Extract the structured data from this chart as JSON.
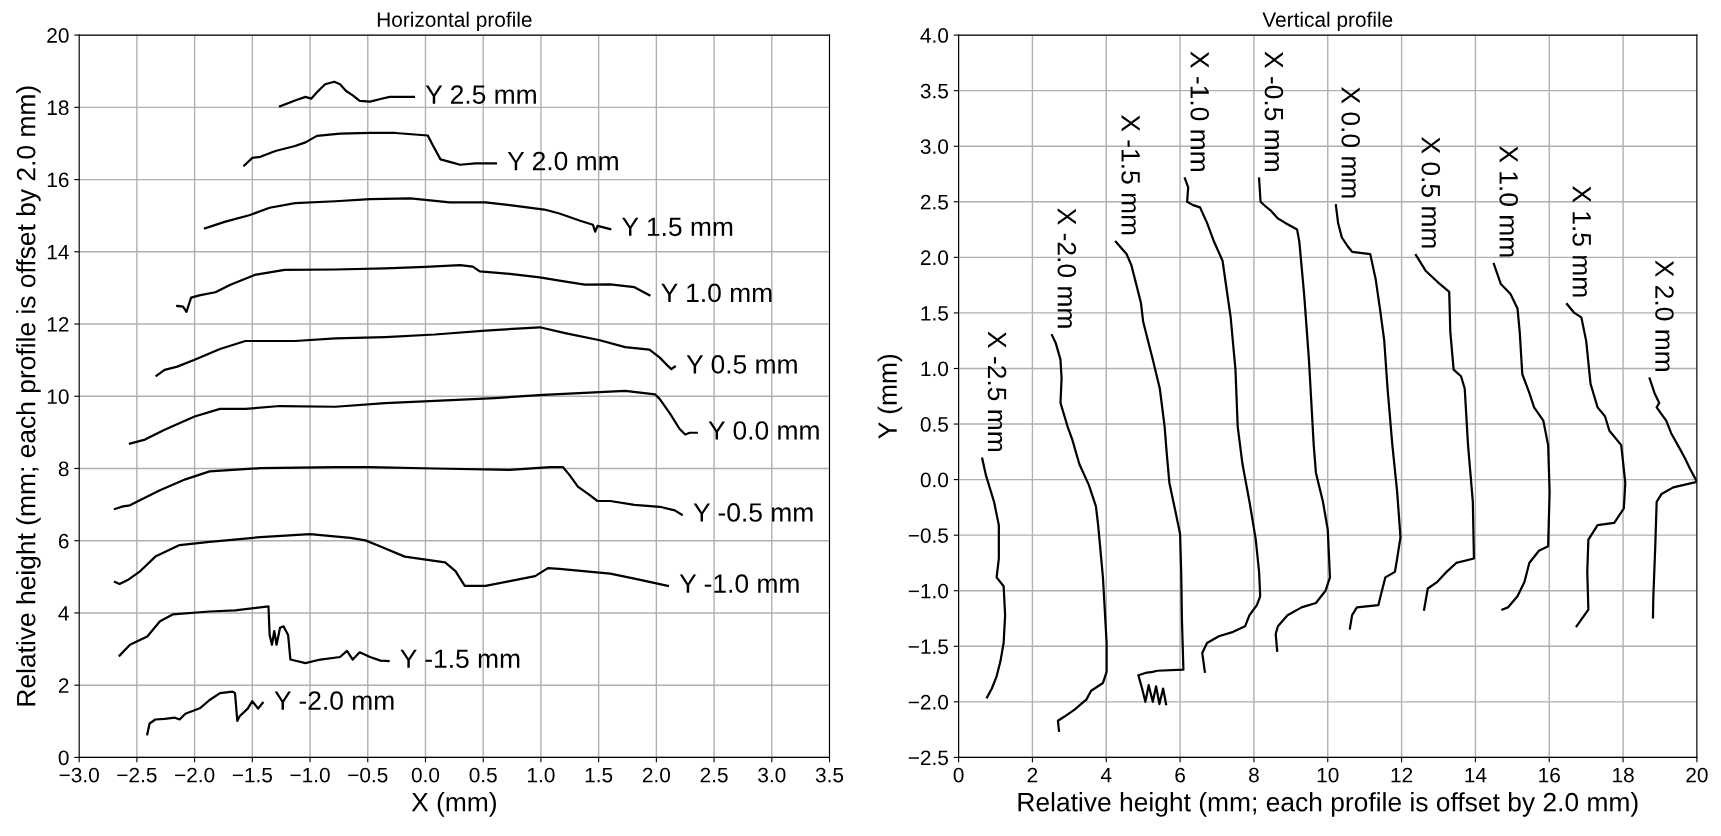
{
  "chart_data": [
    {
      "type": "line",
      "title": "Horizontal profile",
      "xlabel": "X (mm)",
      "ylabel": "Relative height (mm; each profile is offset by 2.0 mm)",
      "xlim": [
        -3.0,
        3.5
      ],
      "xticks": [
        {
          "value": -3.0,
          "label": "−3.0"
        },
        {
          "value": -2.5,
          "label": "−2.5"
        },
        {
          "value": -2.0,
          "label": "−2.0"
        },
        {
          "value": -1.5,
          "label": "−1.5"
        },
        {
          "value": -1.0,
          "label": "−1.0"
        },
        {
          "value": -0.5,
          "label": "−0.5"
        },
        {
          "value": 0.0,
          "label": "0.0"
        },
        {
          "value": 0.5,
          "label": "0.5"
        },
        {
          "value": 1.0,
          "label": "1.0"
        },
        {
          "value": 1.5,
          "label": "1.5"
        },
        {
          "value": 2.0,
          "label": "2.0"
        },
        {
          "value": 2.5,
          "label": "2.5"
        },
        {
          "value": 3.0,
          "label": "3.0"
        },
        {
          "value": 3.5,
          "label": "3.5"
        }
      ],
      "ylim": [
        0,
        20
      ],
      "yticks": [
        0,
        2,
        4,
        6,
        8,
        10,
        12,
        14,
        16,
        18,
        20
      ],
      "grid": true,
      "series": [
        {
          "name": "Y 2.5 mm",
          "color": "#000000",
          "x": [
            -1.26,
            -1.13,
            -1.04,
            -0.99,
            -0.94,
            -0.87,
            -0.79,
            -0.74,
            -0.69,
            -0.63,
            -0.57,
            -0.48,
            -0.39,
            -0.31,
            -0.18,
            -0.1
          ],
          "values": [
            18.03,
            18.19,
            18.29,
            18.24,
            18.42,
            18.64,
            18.71,
            18.64,
            18.46,
            18.33,
            18.18,
            18.16,
            18.23,
            18.29,
            18.29,
            18.29
          ]
        },
        {
          "name": "Y 2.0 mm",
          "color": "#000000",
          "x": [
            -1.57,
            -1.5,
            -1.43,
            -1.3,
            -1.13,
            -1.04,
            -0.94,
            -0.74,
            -0.48,
            -0.26,
            0.02,
            0.06,
            0.13,
            0.21,
            0.3,
            0.43,
            0.61
          ],
          "values": [
            16.39,
            16.6,
            16.63,
            16.79,
            16.93,
            17.03,
            17.21,
            17.27,
            17.29,
            17.29,
            17.22,
            16.97,
            16.56,
            16.49,
            16.41,
            16.45,
            16.45
          ]
        },
        {
          "name": "Y 1.5 mm",
          "color": "#000000",
          "x": [
            -1.91,
            -1.74,
            -1.52,
            -1.35,
            -1.13,
            -0.78,
            -0.48,
            -0.13,
            0.21,
            0.52,
            0.73,
            1.03,
            1.16,
            1.34,
            1.45,
            1.47,
            1.49,
            1.6
          ],
          "values": [
            14.65,
            14.83,
            15.02,
            15.22,
            15.35,
            15.4,
            15.46,
            15.48,
            15.37,
            15.37,
            15.29,
            15.17,
            15.06,
            14.86,
            14.75,
            14.56,
            14.72,
            14.63
          ]
        },
        {
          "name": "Y 1.0 mm",
          "color": "#000000",
          "x": [
            -2.15,
            -2.1,
            -2.07,
            -2.05,
            -2.03,
            -1.95,
            -1.82,
            -1.69,
            -1.48,
            -1.22,
            -0.78,
            -0.35,
            0.0,
            0.3,
            0.41,
            0.47,
            0.73,
            0.99,
            1.16,
            1.38,
            1.6,
            1.81,
            1.94
          ],
          "values": [
            12.5,
            12.48,
            12.34,
            12.54,
            12.73,
            12.8,
            12.88,
            13.09,
            13.36,
            13.5,
            13.51,
            13.54,
            13.58,
            13.63,
            13.59,
            13.46,
            13.39,
            13.29,
            13.2,
            13.09,
            13.1,
            13.02,
            12.8
          ]
        },
        {
          "name": "Y 0.5 mm",
          "color": "#000000",
          "x": [
            -2.33,
            -2.26,
            -2.15,
            -2.0,
            -1.78,
            -1.56,
            -1.13,
            -0.78,
            -0.35,
            0.08,
            0.52,
            0.99,
            1.21,
            1.51,
            1.73,
            1.94,
            2.03,
            2.1,
            2.13,
            2.16
          ],
          "values": [
            10.57,
            10.73,
            10.82,
            11.01,
            11.31,
            11.53,
            11.53,
            11.6,
            11.64,
            11.71,
            11.82,
            11.91,
            11.75,
            11.55,
            11.36,
            11.29,
            11.07,
            10.84,
            10.75,
            10.82
          ]
        },
        {
          "name": "Y 0.0 mm",
          "color": "#000000",
          "x": [
            -2.56,
            -2.43,
            -2.26,
            -2.0,
            -1.78,
            -1.56,
            -1.26,
            -0.78,
            -0.35,
            0.13,
            0.6,
            1.02,
            1.73,
            1.99,
            2.03,
            2.12,
            2.2,
            2.25,
            2.29,
            2.35
          ],
          "values": [
            8.69,
            8.8,
            9.07,
            9.44,
            9.65,
            9.65,
            9.73,
            9.71,
            9.81,
            9.88,
            9.95,
            10.04,
            10.15,
            10.05,
            9.92,
            9.51,
            9.1,
            8.94,
            8.99,
            8.99
          ]
        },
        {
          "name": "Y -0.5 mm",
          "color": "#000000",
          "x": [
            -2.69,
            -2.62,
            -2.56,
            -2.47,
            -2.3,
            -2.08,
            -1.87,
            -1.43,
            -0.78,
            -0.48,
            0.08,
            0.73,
            1.08,
            1.19,
            1.25,
            1.32,
            1.42,
            1.49,
            1.6,
            1.81,
            2.03,
            2.16,
            2.22
          ],
          "values": [
            6.88,
            6.95,
            6.98,
            7.13,
            7.4,
            7.7,
            7.92,
            8.01,
            8.04,
            8.04,
            8.0,
            7.96,
            8.04,
            8.04,
            7.81,
            7.5,
            7.27,
            7.1,
            7.1,
            6.99,
            6.94,
            6.84,
            6.72
          ]
        },
        {
          "name": "Y -1.0 mm",
          "color": "#000000",
          "x": [
            -2.69,
            -2.65,
            -2.58,
            -2.47,
            -2.34,
            -2.13,
            -1.87,
            -1.43,
            -1.0,
            -0.65,
            -0.52,
            -0.39,
            -0.18,
            0.17,
            0.26,
            0.34,
            0.52,
            0.73,
            0.95,
            1.06,
            1.16,
            1.6,
            1.81,
            2.1
          ],
          "values": [
            4.86,
            4.8,
            4.91,
            5.16,
            5.56,
            5.88,
            5.97,
            6.1,
            6.18,
            6.08,
            6.01,
            5.84,
            5.56,
            5.4,
            5.16,
            4.75,
            4.75,
            4.88,
            5.02,
            5.24,
            5.22,
            5.09,
            4.95,
            4.75
          ]
        },
        {
          "name": "Y -1.5 mm",
          "color": "#000000",
          "x": [
            -2.65,
            -2.56,
            -2.41,
            -2.3,
            -2.19,
            -1.87,
            -1.65,
            -1.36,
            -1.35,
            -1.33,
            -1.31,
            -1.29,
            -1.26,
            -1.23,
            -1.19,
            -1.17,
            -1.04,
            -0.91,
            -0.74,
            -0.68,
            -0.63,
            -0.57,
            -0.48,
            -0.39,
            -0.32
          ],
          "values": [
            2.82,
            3.12,
            3.35,
            3.77,
            3.96,
            4.04,
            4.07,
            4.18,
            3.39,
            3.12,
            3.5,
            3.12,
            3.59,
            3.63,
            3.39,
            2.71,
            2.61,
            2.71,
            2.78,
            2.95,
            2.71,
            2.91,
            2.78,
            2.68,
            2.67
          ]
        },
        {
          "name": "Y -2.0 mm",
          "color": "#000000",
          "x": [
            -2.41,
            -2.39,
            -2.34,
            -2.26,
            -2.17,
            -2.13,
            -2.08,
            -1.95,
            -1.87,
            -1.78,
            -1.67,
            -1.65,
            -1.63,
            -1.61,
            -1.54,
            -1.5,
            -1.45,
            -1.41
          ],
          "values": [
            0.64,
            0.94,
            1.05,
            1.07,
            1.1,
            1.05,
            1.21,
            1.37,
            1.59,
            1.78,
            1.82,
            1.78,
            1.01,
            1.14,
            1.35,
            1.56,
            1.35,
            1.51
          ]
        }
      ]
    },
    {
      "type": "line",
      "title": "Vertical profile",
      "xlabel": "Relative height (mm; each profile is offset by 2.0 mm)",
      "ylabel": "Y (mm)",
      "xlim": [
        0,
        20
      ],
      "xticks": [
        0,
        2,
        4,
        6,
        8,
        10,
        12,
        14,
        16,
        18,
        20
      ],
      "ylim": [
        -2.5,
        4.0
      ],
      "yticks": [
        {
          "value": -2.5,
          "label": "−2.5"
        },
        {
          "value": -2.0,
          "label": "−2.0"
        },
        {
          "value": -1.5,
          "label": "−1.5"
        },
        {
          "value": -1.0,
          "label": "−1.0"
        },
        {
          "value": -0.5,
          "label": "−0.5"
        },
        {
          "value": 0.0,
          "label": "0.0"
        },
        {
          "value": 0.5,
          "label": "0.5"
        },
        {
          "value": 1.0,
          "label": "1.0"
        },
        {
          "value": 1.5,
          "label": "1.5"
        },
        {
          "value": 2.0,
          "label": "2.0"
        },
        {
          "value": 2.5,
          "label": "2.5"
        },
        {
          "value": 3.0,
          "label": "3.0"
        },
        {
          "value": 3.5,
          "label": "3.5"
        },
        {
          "value": 4.0,
          "label": "4.0"
        }
      ],
      "grid": true,
      "series": [
        {
          "name": "X -2.5 mm",
          "color": "#000000",
          "x": [
            0.64,
            0.74,
            0.96,
            1.09,
            1.09,
            1.03,
            1.22,
            1.26,
            1.22,
            1.13,
            1.03,
            0.9,
            0.77
          ],
          "values": [
            0.19,
            0.04,
            -0.2,
            -0.41,
            -0.71,
            -0.88,
            -0.96,
            -1.22,
            -1.47,
            -1.64,
            -1.77,
            -1.88,
            -1.96
          ]
        },
        {
          "name": "X -2.0 mm",
          "color": "#000000",
          "x": [
            2.53,
            2.63,
            2.76,
            2.79,
            2.76,
            2.95,
            3.08,
            3.27,
            3.53,
            3.72,
            3.78,
            3.91,
            4.01,
            4.01,
            3.91,
            3.59,
            3.46,
            3.14,
            2.88,
            2.69,
            2.72
          ],
          "values": [
            1.3,
            1.23,
            1.08,
            0.91,
            0.69,
            0.48,
            0.36,
            0.14,
            -0.05,
            -0.24,
            -0.41,
            -0.88,
            -1.47,
            -1.73,
            -1.83,
            -1.9,
            -1.98,
            -2.07,
            -2.13,
            -2.17,
            -2.26
          ]
        },
        {
          "name": "X -1.5 mm",
          "color": "#000000",
          "x": [
            4.26,
            4.55,
            4.68,
            4.81,
            4.94,
            5.0,
            5.26,
            5.45,
            5.58,
            5.64,
            5.71,
            5.87,
            6.0,
            6.03,
            6.05,
            6.09,
            5.38,
            5.26,
            5.06,
            4.87,
            4.97,
            5.06,
            5.15,
            5.26,
            5.35,
            5.44,
            5.54,
            5.62
          ],
          "values": [
            2.14,
            2.03,
            1.93,
            1.76,
            1.59,
            1.42,
            1.08,
            0.82,
            0.48,
            0.23,
            -0.03,
            -0.28,
            -0.49,
            -0.83,
            -1.26,
            -1.71,
            -1.72,
            -1.73,
            -1.74,
            -1.76,
            -1.88,
            -2.0,
            -1.85,
            -2.0,
            -1.86,
            -2.02,
            -1.88,
            -2.02
          ]
        },
        {
          "name": "X -1.0 mm",
          "color": "#000000",
          "x": [
            6.13,
            6.22,
            6.19,
            6.35,
            6.54,
            6.73,
            6.92,
            7.15,
            7.24,
            7.37,
            7.5,
            7.56,
            7.69,
            7.88,
            8.05,
            8.14,
            8.17,
            8.08,
            7.88,
            7.76,
            7.44,
            7.05,
            6.73,
            6.6,
            6.67
          ],
          "values": [
            2.71,
            2.63,
            2.5,
            2.47,
            2.45,
            2.31,
            2.14,
            1.97,
            1.76,
            1.46,
            0.99,
            0.48,
            0.14,
            -0.2,
            -0.54,
            -0.83,
            -1.05,
            -1.13,
            -1.22,
            -1.32,
            -1.37,
            -1.41,
            -1.47,
            -1.56,
            -1.73
          ]
        },
        {
          "name": "X -0.5 mm",
          "color": "#000000",
          "x": [
            8.14,
            8.18,
            8.31,
            8.46,
            8.65,
            8.85,
            9.17,
            9.23,
            9.36,
            9.49,
            9.62,
            9.68,
            9.87,
            10.0,
            10.06,
            9.94,
            9.68,
            9.29,
            8.91,
            8.65,
            8.59,
            8.63
          ],
          "values": [
            2.71,
            2.5,
            2.46,
            2.42,
            2.35,
            2.31,
            2.25,
            2.14,
            1.67,
            1.08,
            0.31,
            0.06,
            -0.2,
            -0.45,
            -0.88,
            -1.0,
            -1.11,
            -1.15,
            -1.22,
            -1.32,
            -1.39,
            -1.54
          ]
        },
        {
          "name": "X 0.0 mm",
          "color": "#000000",
          "x": [
            10.22,
            10.28,
            10.38,
            10.54,
            10.66,
            11.15,
            11.3,
            11.43,
            11.53,
            11.62,
            11.75,
            11.88,
            11.97,
            11.88,
            11.82,
            11.56,
            11.43,
            11.37,
            10.79,
            10.66,
            10.6
          ],
          "values": [
            2.47,
            2.31,
            2.18,
            2.1,
            2.05,
            2.03,
            1.8,
            1.5,
            1.25,
            0.82,
            0.31,
            -0.11,
            -0.52,
            -0.71,
            -0.83,
            -0.88,
            -1.05,
            -1.13,
            -1.15,
            -1.22,
            -1.34
          ]
        },
        {
          "name": "X 0.5 mm",
          "color": "#000000",
          "x": [
            12.39,
            12.65,
            12.97,
            13.29,
            13.32,
            13.41,
            13.61,
            13.71,
            13.8,
            13.93,
            13.96,
            13.48,
            13.22,
            12.97,
            12.71,
            12.61
          ],
          "values": [
            2.02,
            1.88,
            1.78,
            1.69,
            1.33,
            0.99,
            0.93,
            0.82,
            0.31,
            -0.2,
            -0.71,
            -0.75,
            -0.83,
            -0.92,
            -0.98,
            -1.17
          ]
        },
        {
          "name": "X 1.0 mm",
          "color": "#000000",
          "x": [
            14.5,
            14.69,
            14.95,
            15.14,
            15.2,
            15.27,
            15.46,
            15.59,
            15.84,
            15.97,
            16.01,
            15.97,
            15.72,
            15.46,
            15.33,
            15.14,
            14.88,
            14.73
          ],
          "values": [
            1.94,
            1.76,
            1.67,
            1.54,
            1.33,
            0.95,
            0.78,
            0.65,
            0.53,
            0.31,
            -0.11,
            -0.6,
            -0.64,
            -0.75,
            -0.92,
            -1.05,
            -1.15,
            -1.17
          ]
        },
        {
          "name": "X 1.5 mm",
          "color": "#000000",
          "x": [
            16.48,
            16.68,
            16.87,
            17.0,
            17.12,
            17.31,
            17.51,
            17.63,
            17.95,
            18.06,
            18.02,
            17.76,
            17.31,
            17.06,
            17.03,
            17.06,
            16.74
          ],
          "values": [
            1.58,
            1.5,
            1.46,
            1.25,
            0.86,
            0.65,
            0.57,
            0.44,
            0.31,
            -0.03,
            -0.26,
            -0.39,
            -0.41,
            -0.54,
            -0.83,
            -1.17,
            -1.32
          ]
        },
        {
          "name": "X 2.0 mm",
          "color": "#000000",
          "x": [
            18.72,
            18.85,
            18.98,
            18.91,
            19.04,
            19.17,
            19.3,
            19.55,
            19.68,
            19.81,
            20.0,
            19.36,
            19.04,
            18.91,
            18.87,
            18.82,
            18.81
          ],
          "values": [
            0.91,
            0.78,
            0.69,
            0.65,
            0.59,
            0.53,
            0.42,
            0.27,
            0.19,
            0.1,
            -0.02,
            -0.07,
            -0.13,
            -0.2,
            -0.62,
            -1.05,
            -1.24
          ]
        }
      ]
    }
  ]
}
